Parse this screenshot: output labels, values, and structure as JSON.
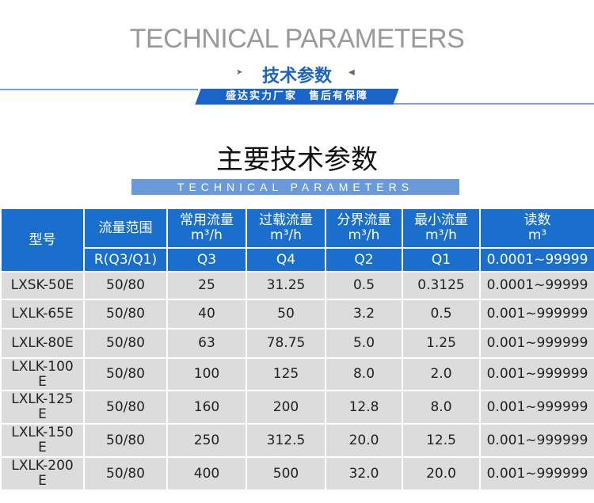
{
  "header": {
    "en_title": "TECHNICAL PARAMETERS",
    "cn_subtitle": "技术参数",
    "slogan": "盛达实力厂家　售后有保障",
    "arrow_left": "➤",
    "arrow_right": "◀"
  },
  "section": {
    "title": "主要技术参数",
    "en_band": "TECHNICAL  PARAMETERS"
  },
  "table": {
    "model_header": "型号",
    "headers": [
      {
        "name": "流量范围",
        "unit": "",
        "sub": "R(Q3/Q1)"
      },
      {
        "name": "常用流量",
        "unit": "m³/h",
        "sub": "Q3"
      },
      {
        "name": "过载流量",
        "unit": "m³/h",
        "sub": "Q4"
      },
      {
        "name": "分界流量",
        "unit": "m³/h",
        "sub": "Q2"
      },
      {
        "name": "最小流量",
        "unit": "m³/h",
        "sub": "Q1"
      },
      {
        "name": "读数",
        "unit": "m³",
        "sub": "0.0001~99999"
      }
    ],
    "rows": [
      [
        "LXSK-50E",
        "50/80",
        "25",
        "31.25",
        "0.5",
        "0.3125",
        "0.0001~99999"
      ],
      [
        "LXLK-65E",
        "50/80",
        "40",
        "50",
        "3.2",
        "0.5",
        "0.001~999999"
      ],
      [
        "LXLK-80E",
        "50/80",
        "63",
        "78.75",
        "5.0",
        "1.25",
        "0.001~999999"
      ],
      [
        "LXLK-100E",
        "50/80",
        "100",
        "125",
        "8.0",
        "2.0",
        "0.001~999999"
      ],
      [
        "LXLK-125E",
        "50/80",
        "160",
        "200",
        "12.8",
        "8.0",
        "0.001~999999"
      ],
      [
        "LXLK-150E",
        "50/80",
        "250",
        "312.5",
        "20.0",
        "12.5",
        "0.001~999999"
      ],
      [
        "LXLK-200E",
        "50/80",
        "400",
        "500",
        "32.0",
        "20.0",
        "0.001~999999"
      ]
    ]
  },
  "colors": {
    "accent": "#1a6fcc",
    "row_bg": "#dcdcdc",
    "band": "#6a9ad9"
  }
}
